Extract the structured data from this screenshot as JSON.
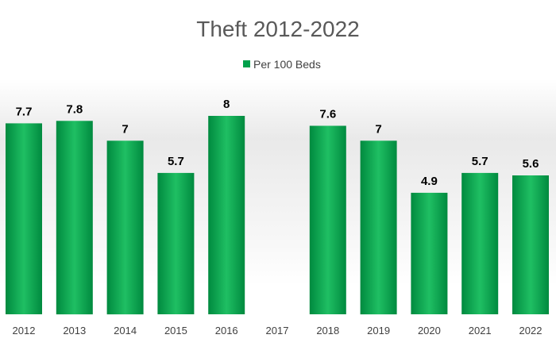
{
  "chart_data": {
    "type": "bar",
    "title": "Theft 2012-2022",
    "xlabel": "",
    "ylabel": "",
    "categories": [
      "2012",
      "2013",
      "2014",
      "2015",
      "2016",
      "2017",
      "2018",
      "2019",
      "2020",
      "2021",
      "2022"
    ],
    "series": [
      {
        "name": "Per 100 Beds",
        "values": [
          7.7,
          7.8,
          7,
          5.7,
          8,
          null,
          7.6,
          7,
          4.9,
          5.7,
          5.6
        ],
        "labels": [
          "7.7",
          "7.8",
          "7",
          "5.7",
          "8",
          "",
          "7.6",
          "7",
          "4.9",
          "5.7",
          "5.6"
        ]
      }
    ],
    "ylim": [
      0,
      8
    ],
    "grid": false,
    "legend": "top-center",
    "colors": {
      "bar": "#00a14b",
      "bar_light": "#1fbf63",
      "bar_dark": "#008a3f",
      "title": "#595959",
      "tick": "#404040"
    }
  }
}
